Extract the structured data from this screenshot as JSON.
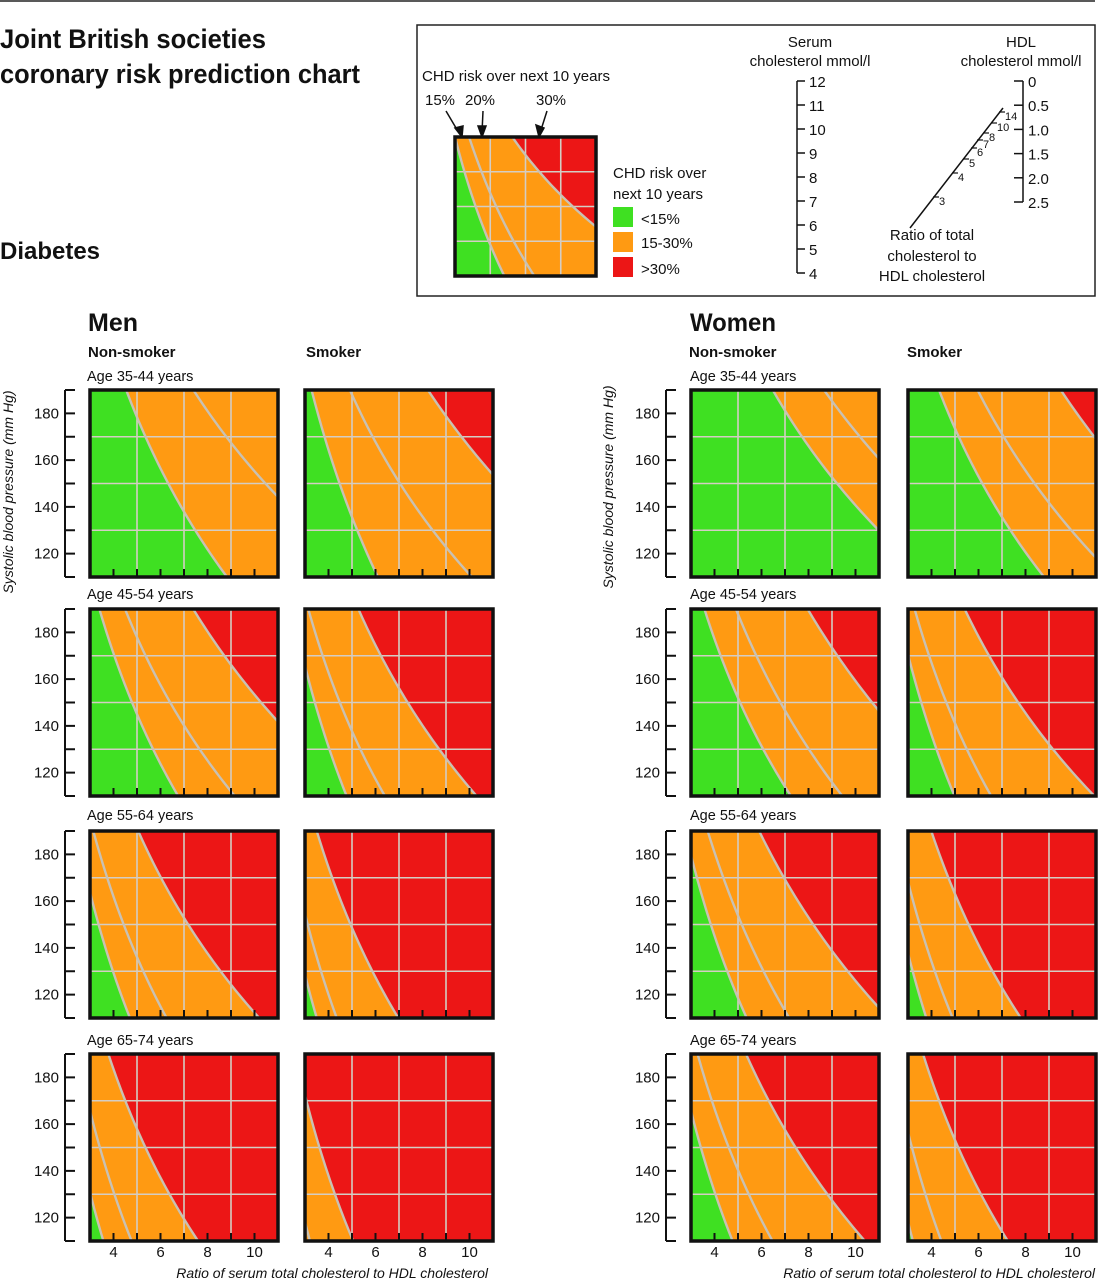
{
  "title": [
    "Joint British societies",
    "coronary risk prediction chart"
  ],
  "subtitle": "Diabetes",
  "legend": {
    "heading": "CHD risk over next 10 years",
    "arrow_labels": [
      "15%",
      "20%",
      "30%"
    ],
    "key_heading": [
      "CHD risk over",
      "next 10 years"
    ],
    "key_items": [
      {
        "label": "<15%",
        "color": "#3fe022"
      },
      {
        "label": "15-30%",
        "color": "#ff9a12"
      },
      {
        "label": ">30%",
        "color": "#ec1616"
      }
    ],
    "example_contours": [
      [
        3.0,
        5.8
      ],
      [
        3.8,
        7.5
      ],
      [
        6.25,
        15.0
      ]
    ]
  },
  "nomogram": {
    "serum_title": [
      "Serum",
      "cholesterol mmol/l"
    ],
    "serum_ticks": [
      "12",
      "11",
      "10",
      "9",
      "8",
      "7",
      "6",
      "5",
      "4"
    ],
    "hdl_title": [
      "HDL",
      "cholesterol mmol/l"
    ],
    "hdl_ticks": [
      "0",
      "0.5",
      "1.0",
      "1.5",
      "2.0",
      "2.5"
    ],
    "ratio_ticks": [
      "3",
      "4",
      "5",
      "6",
      "7",
      "8",
      "10",
      "14"
    ],
    "ratio_title": [
      "Ratio of total",
      "cholesterol to",
      "HDL cholesterol"
    ]
  },
  "chart_data": {
    "type": "heatmap",
    "xlabel": "Ratio of serum total cholesterol to HDL cholesterol",
    "ylabel": "Systolic blood pressure (mm Hg)",
    "xlim": [
      3,
      11
    ],
    "ylim": [
      110,
      190
    ],
    "x_tick_labels": [
      "4",
      "6",
      "8",
      "10"
    ],
    "y_tick_labels": [
      "180",
      "160",
      "140",
      "120"
    ],
    "x_grid": [
      5,
      7,
      9
    ],
    "y_grid": [
      130,
      150,
      170
    ],
    "grid": true,
    "colors": {
      "low": "#3fe022",
      "mid": "#ff9a12",
      "high": "#ec1616",
      "contour": "#c9c1b3",
      "grid": "#d4cdc4"
    },
    "thresholds": [
      "15%",
      "20%",
      "30%"
    ],
    "contour_format": "ratio at SBP 190 and at SBP 110 for each threshold",
    "groups": [
      {
        "name": "Men",
        "columns": [
          "Non-smoker",
          "Smoker"
        ]
      },
      {
        "name": "Women",
        "columns": [
          "Non-smoker",
          "Smoker"
        ]
      }
    ],
    "age_bands": [
      "Age 35-44 years",
      "Age 45-54 years",
      "Age 55-64 years",
      "Age 65-74 years"
    ],
    "panels": [
      {
        "sex": "Men",
        "smoking": "Non-smoker",
        "age": "35-44",
        "contours": [
          [
            4.54,
            8.83
          ],
          [
            7.4,
            14.8
          ],
          null
        ]
      },
      {
        "sex": "Men",
        "smoking": "Non-smoker",
        "age": "45-54",
        "contours": [
          [
            3.4,
            6.75
          ],
          [
            4.49,
            9.16
          ],
          [
            7.39,
            14.3
          ]
        ]
      },
      {
        "sex": "Men",
        "smoking": "Non-smoker",
        "age": "55-64",
        "contours": [
          [
            2.41,
            4.7
          ],
          [
            3.14,
            6.26
          ],
          [
            5.05,
            10.2
          ]
        ]
      },
      {
        "sex": "Men",
        "smoking": "Non-smoker",
        "age": "65-74",
        "contours": [
          [
            1.83,
            3.57
          ],
          [
            2.45,
            4.77
          ],
          [
            3.78,
            7.6
          ]
        ]
      },
      {
        "sex": "Men",
        "smoking": "Smoker",
        "age": "35-44",
        "contours": [
          [
            3.28,
            6.1
          ],
          [
            4.91,
            10.1
          ],
          [
            8.23,
            15.6
          ]
        ]
      },
      {
        "sex": "Men",
        "smoking": "Smoker",
        "age": "45-54",
        "contours": [
          [
            2.45,
            4.77
          ],
          [
            3.14,
            6.4
          ],
          [
            5.27,
            10.3
          ]
        ]
      },
      {
        "sex": "Men",
        "smoking": "Smoker",
        "age": "55-64",
        "contours": [
          [
            1.8,
            3.5
          ],
          [
            2.23,
            4.35
          ],
          [
            3.5,
            6.97
          ]
        ]
      },
      {
        "sex": "Men",
        "smoking": "Smoker",
        "age": "65-74",
        "contours": [
          null,
          [
            1.65,
            3.21
          ],
          [
            2.59,
            5.05
          ]
        ]
      },
      {
        "sex": "Women",
        "smoking": "Non-smoker",
        "age": "35-44",
        "contours": [
          [
            6.48,
            13.1
          ],
          [
            8.66,
            16.6
          ],
          null
        ]
      },
      {
        "sex": "Women",
        "smoking": "Non-smoker",
        "age": "45-54",
        "contours": [
          [
            3.57,
            7.25
          ],
          [
            4.91,
            9.44
          ],
          [
            7.96,
            14.4
          ]
        ]
      },
      {
        "sex": "Women",
        "smoking": "Non-smoker",
        "age": "55-64",
        "contours": [
          [
            2.75,
            5.37
          ],
          [
            3.71,
            7.18
          ],
          [
            5.9,
            11.4
          ]
        ]
      },
      {
        "sex": "Women",
        "smoking": "Non-smoker",
        "age": "65-74",
        "contours": [
          [
            2.45,
            4.77
          ],
          [
            3.28,
            6.47
          ],
          [
            5.34,
            10.4
          ]
        ]
      },
      {
        "sex": "Women",
        "smoking": "Smoker",
        "age": "35-44",
        "contours": [
          [
            4.32,
            8.79
          ],
          [
            5.96,
            11.8
          ],
          [
            9.5,
            16.6
          ]
        ]
      },
      {
        "sex": "Women",
        "smoking": "Smoker",
        "age": "45-54",
        "contours": [
          [
            2.55,
            4.98
          ],
          [
            3.28,
            6.54
          ],
          [
            5.41,
            10.93
          ]
        ]
      },
      {
        "sex": "Women",
        "smoking": "Smoker",
        "age": "55-64",
        "contours": [
          [
            1.94,
            3.78
          ],
          [
            2.5,
            4.9
          ],
          [
            3.99,
            7.8
          ]
        ]
      },
      {
        "sex": "Women",
        "smoking": "Smoker",
        "age": "65-74",
        "contours": [
          [
            1.65,
            3.21
          ],
          [
            2.27,
            4.42
          ],
          [
            3.64,
            7.25
          ]
        ]
      }
    ]
  }
}
